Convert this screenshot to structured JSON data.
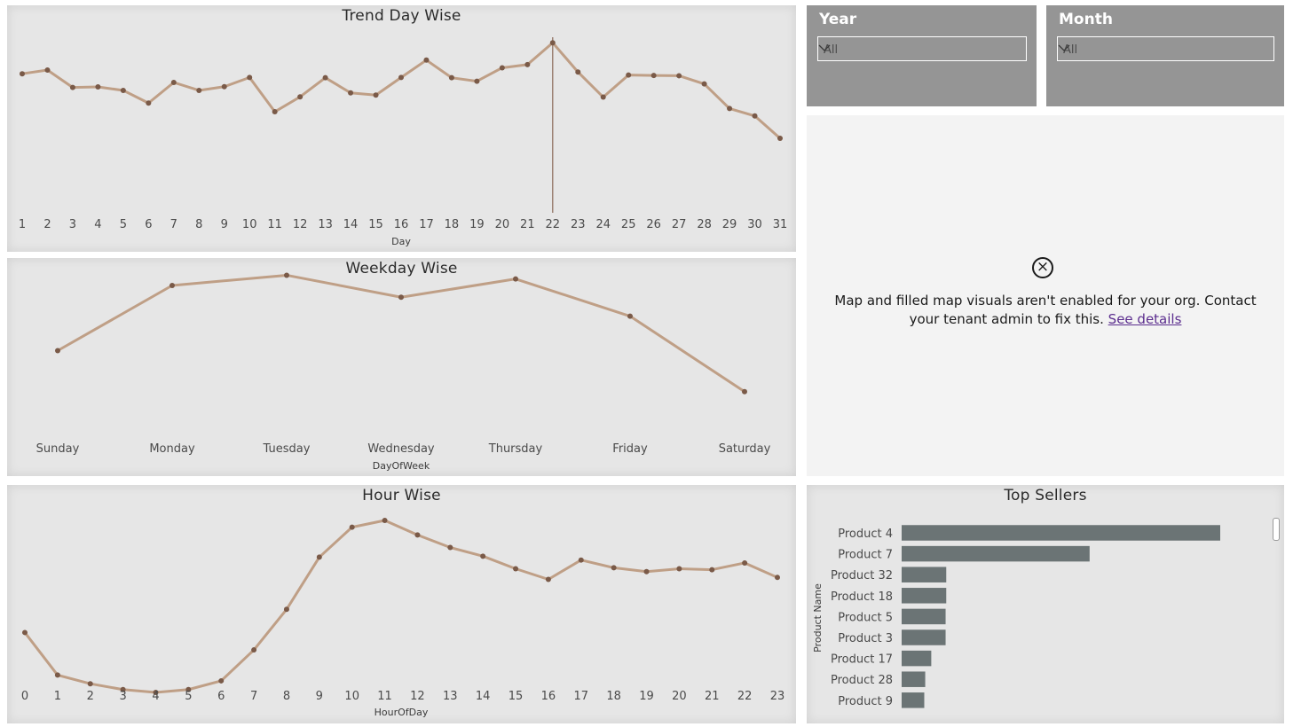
{
  "colors": {
    "line": "#bf9f86",
    "point": "#7a5a48",
    "bar": "#6b7475",
    "slicer_bg": "#959595"
  },
  "chart_data": [
    {
      "id": "trend_day",
      "type": "line",
      "title": "Trend Day Wise",
      "xlabel": "Day",
      "categories": [
        "1",
        "2",
        "3",
        "4",
        "5",
        "6",
        "7",
        "8",
        "9",
        "10",
        "11",
        "12",
        "13",
        "14",
        "15",
        "16",
        "17",
        "18",
        "19",
        "20",
        "21",
        "22",
        "23",
        "24",
        "25",
        "26",
        "27",
        "28",
        "29",
        "30",
        "31"
      ],
      "values": [
        76,
        77.5,
        70.5,
        70.7,
        69.3,
        64.2,
        72.5,
        69.3,
        70.8,
        74.5,
        60.7,
        66.7,
        74.4,
        68.3,
        67.4,
        74.5,
        81.5,
        74.4,
        73.0,
        78.4,
        79.7,
        88.5,
        76.7,
        66.6,
        75.5,
        75.3,
        75.2,
        71.9,
        62.0,
        59.0,
        50.0
      ],
      "ylim": [
        0,
        100
      ],
      "highlight_category": "22"
    },
    {
      "id": "weekday",
      "type": "line",
      "title": "Weekday Wise",
      "xlabel": "DayOfWeek",
      "categories": [
        "Sunday",
        "Monday",
        "Tuesday",
        "Wednesday",
        "Thursday",
        "Friday",
        "Saturday"
      ],
      "values": [
        55,
        90,
        95.5,
        83.7,
        93.5,
        73.5,
        33
      ],
      "ylim": [
        0,
        100
      ]
    },
    {
      "id": "hour",
      "type": "line",
      "title": "Hour Wise",
      "xlabel": "HourOfDay",
      "categories": [
        "0",
        "1",
        "2",
        "3",
        "4",
        "5",
        "6",
        "7",
        "8",
        "9",
        "10",
        "11",
        "12",
        "13",
        "14",
        "15",
        "16",
        "17",
        "18",
        "19",
        "20",
        "21",
        "22",
        "23"
      ],
      "values": [
        42,
        20,
        15.5,
        12.5,
        11,
        12.5,
        17,
        33,
        54,
        81,
        96.5,
        100,
        92.5,
        86,
        81.5,
        75,
        69.5,
        79.5,
        75.5,
        73.5,
        75,
        74.5,
        78,
        70.5
      ],
      "ylim": [
        0,
        100
      ]
    },
    {
      "id": "top_sellers",
      "type": "bar",
      "orientation": "horizontal",
      "title": "Top Sellers",
      "ylabel": "Product Name",
      "categories": [
        "Product 4",
        "Product 7",
        "Product 32",
        "Product 18",
        "Product 5",
        "Product 3",
        "Product 17",
        "Product 28",
        "Product 9"
      ],
      "values": [
        100,
        59,
        14,
        14,
        13.8,
        13.8,
        9.3,
        7.4,
        7.1
      ],
      "xlim": [
        0,
        100
      ]
    }
  ],
  "slicers": {
    "year": {
      "title": "Year",
      "value": "All"
    },
    "month": {
      "title": "Month",
      "value": "All"
    }
  },
  "map": {
    "message": "Map and filled map visuals aren't enabled for your org. Contact your tenant admin to fix this.",
    "link": "See details"
  }
}
